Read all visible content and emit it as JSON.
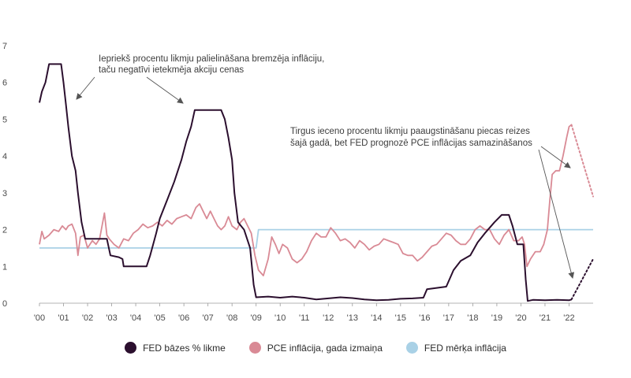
{
  "chart_data": {
    "type": "line",
    "ylim": [
      0,
      7
    ],
    "yticks": [
      0,
      1,
      2,
      3,
      4,
      5,
      6,
      7
    ],
    "xlim": [
      2000,
      2023
    ],
    "xticks": [
      {
        "year": 2000,
        "label": "'00"
      },
      {
        "year": 2001,
        "label": "'01"
      },
      {
        "year": 2002,
        "label": "'02"
      },
      {
        "year": 2003,
        "label": "'03"
      },
      {
        "year": 2004,
        "label": "'04"
      },
      {
        "year": 2005,
        "label": "'05"
      },
      {
        "year": 2006,
        "label": "'06"
      },
      {
        "year": 2007,
        "label": "'07"
      },
      {
        "year": 2008,
        "label": "'08"
      },
      {
        "year": 2009,
        "label": "'09"
      },
      {
        "year": 2010,
        "label": "'10"
      },
      {
        "year": 2011,
        "label": "'11"
      },
      {
        "year": 2012,
        "label": "'12"
      },
      {
        "year": 2013,
        "label": "'13"
      },
      {
        "year": 2014,
        "label": "'14"
      },
      {
        "year": 2015,
        "label": "'15"
      },
      {
        "year": 2016,
        "label": "'16"
      },
      {
        "year": 2017,
        "label": "'17"
      },
      {
        "year": 2018,
        "label": "'18"
      },
      {
        "year": 2019,
        "label": "'19"
      },
      {
        "year": 2020,
        "label": "'20"
      },
      {
        "year": 2021,
        "label": "'21"
      },
      {
        "year": 2022,
        "label": "'22"
      }
    ],
    "series": [
      {
        "name": "FED bāzes % likme",
        "color": "#2b0f2e",
        "points": [
          [
            2000.0,
            5.45
          ],
          [
            2000.1,
            5.75
          ],
          [
            2000.25,
            6.0
          ],
          [
            2000.4,
            6.5
          ],
          [
            2000.6,
            6.5
          ],
          [
            2000.9,
            6.5
          ],
          [
            2001.0,
            6.0
          ],
          [
            2001.1,
            5.4
          ],
          [
            2001.2,
            4.8
          ],
          [
            2001.35,
            4.0
          ],
          [
            2001.5,
            3.6
          ],
          [
            2001.6,
            3.0
          ],
          [
            2001.75,
            2.2
          ],
          [
            2001.9,
            1.75
          ],
          [
            2002.2,
            1.75
          ],
          [
            2002.5,
            1.75
          ],
          [
            2002.8,
            1.75
          ],
          [
            2002.95,
            1.3
          ],
          [
            2003.3,
            1.25
          ],
          [
            2003.45,
            1.2
          ],
          [
            2003.5,
            1.0
          ],
          [
            2003.8,
            1.0
          ],
          [
            2004.2,
            1.0
          ],
          [
            2004.45,
            1.0
          ],
          [
            2004.6,
            1.3
          ],
          [
            2004.85,
            1.9
          ],
          [
            2005.0,
            2.3
          ],
          [
            2005.3,
            2.8
          ],
          [
            2005.6,
            3.3
          ],
          [
            2005.9,
            3.9
          ],
          [
            2006.1,
            4.4
          ],
          [
            2006.3,
            4.8
          ],
          [
            2006.45,
            5.25
          ],
          [
            2006.8,
            5.25
          ],
          [
            2007.3,
            5.25
          ],
          [
            2007.55,
            5.25
          ],
          [
            2007.7,
            5.0
          ],
          [
            2007.85,
            4.5
          ],
          [
            2008.0,
            3.9
          ],
          [
            2008.1,
            3.0
          ],
          [
            2008.25,
            2.2
          ],
          [
            2008.5,
            2.0
          ],
          [
            2008.75,
            1.5
          ],
          [
            2008.9,
            0.5
          ],
          [
            2009.0,
            0.16
          ],
          [
            2009.5,
            0.18
          ],
          [
            2010.0,
            0.15
          ],
          [
            2010.5,
            0.18
          ],
          [
            2011.0,
            0.15
          ],
          [
            2011.5,
            0.1
          ],
          [
            2012.0,
            0.13
          ],
          [
            2012.5,
            0.16
          ],
          [
            2013.0,
            0.14
          ],
          [
            2013.5,
            0.1
          ],
          [
            2014.0,
            0.08
          ],
          [
            2014.5,
            0.09
          ],
          [
            2015.0,
            0.12
          ],
          [
            2015.5,
            0.13
          ],
          [
            2015.95,
            0.15
          ],
          [
            2016.1,
            0.38
          ],
          [
            2016.9,
            0.45
          ],
          [
            2017.2,
            0.9
          ],
          [
            2017.5,
            1.15
          ],
          [
            2017.9,
            1.3
          ],
          [
            2018.2,
            1.65
          ],
          [
            2018.5,
            1.9
          ],
          [
            2018.9,
            2.2
          ],
          [
            2019.2,
            2.4
          ],
          [
            2019.5,
            2.4
          ],
          [
            2019.65,
            2.1
          ],
          [
            2019.85,
            1.6
          ],
          [
            2020.1,
            1.6
          ],
          [
            2020.2,
            0.65
          ],
          [
            2020.28,
            0.06
          ],
          [
            2020.5,
            0.09
          ],
          [
            2021.0,
            0.08
          ],
          [
            2021.5,
            0.09
          ],
          [
            2022.0,
            0.08
          ],
          [
            2022.1,
            0.1
          ]
        ]
      },
      {
        "name": "PCE inflācija, gada izmaiņa",
        "color": "#d98a95",
        "points": [
          [
            2000.0,
            1.6
          ],
          [
            2000.1,
            1.95
          ],
          [
            2000.2,
            1.75
          ],
          [
            2000.4,
            1.85
          ],
          [
            2000.6,
            2.0
          ],
          [
            2000.8,
            1.95
          ],
          [
            2000.95,
            2.1
          ],
          [
            2001.1,
            2.0
          ],
          [
            2001.2,
            2.1
          ],
          [
            2001.35,
            2.15
          ],
          [
            2001.5,
            1.9
          ],
          [
            2001.6,
            1.3
          ],
          [
            2001.7,
            1.8
          ],
          [
            2001.85,
            1.85
          ],
          [
            2002.0,
            1.5
          ],
          [
            2002.2,
            1.7
          ],
          [
            2002.35,
            1.6
          ],
          [
            2002.5,
            1.75
          ],
          [
            2002.7,
            2.45
          ],
          [
            2002.8,
            1.85
          ],
          [
            2002.9,
            1.75
          ],
          [
            2003.1,
            1.6
          ],
          [
            2003.3,
            1.5
          ],
          [
            2003.5,
            1.75
          ],
          [
            2003.7,
            1.7
          ],
          [
            2003.9,
            1.9
          ],
          [
            2004.1,
            2.0
          ],
          [
            2004.3,
            2.15
          ],
          [
            2004.5,
            2.05
          ],
          [
            2004.7,
            2.1
          ],
          [
            2004.9,
            2.2
          ],
          [
            2005.1,
            2.1
          ],
          [
            2005.3,
            2.25
          ],
          [
            2005.5,
            2.15
          ],
          [
            2005.7,
            2.3
          ],
          [
            2005.9,
            2.35
          ],
          [
            2006.1,
            2.4
          ],
          [
            2006.3,
            2.3
          ],
          [
            2006.5,
            2.6
          ],
          [
            2006.65,
            2.7
          ],
          [
            2006.8,
            2.5
          ],
          [
            2006.95,
            2.3
          ],
          [
            2007.1,
            2.5
          ],
          [
            2007.25,
            2.3
          ],
          [
            2007.4,
            2.1
          ],
          [
            2007.55,
            2.0
          ],
          [
            2007.7,
            2.1
          ],
          [
            2007.85,
            2.35
          ],
          [
            2008.0,
            2.1
          ],
          [
            2008.2,
            2.0
          ],
          [
            2008.35,
            2.2
          ],
          [
            2008.5,
            2.3
          ],
          [
            2008.65,
            2.1
          ],
          [
            2008.8,
            1.9
          ],
          [
            2008.95,
            1.3
          ],
          [
            2009.1,
            0.9
          ],
          [
            2009.3,
            0.75
          ],
          [
            2009.5,
            1.2
          ],
          [
            2009.65,
            1.8
          ],
          [
            2009.8,
            1.6
          ],
          [
            2009.95,
            1.35
          ],
          [
            2010.1,
            1.6
          ],
          [
            2010.3,
            1.5
          ],
          [
            2010.5,
            1.2
          ],
          [
            2010.7,
            1.1
          ],
          [
            2010.9,
            1.2
          ],
          [
            2011.1,
            1.4
          ],
          [
            2011.3,
            1.7
          ],
          [
            2011.5,
            1.9
          ],
          [
            2011.7,
            1.8
          ],
          [
            2011.9,
            1.8
          ],
          [
            2012.1,
            2.05
          ],
          [
            2012.3,
            1.9
          ],
          [
            2012.5,
            1.7
          ],
          [
            2012.7,
            1.75
          ],
          [
            2012.9,
            1.65
          ],
          [
            2013.1,
            1.5
          ],
          [
            2013.3,
            1.7
          ],
          [
            2013.5,
            1.6
          ],
          [
            2013.7,
            1.45
          ],
          [
            2013.9,
            1.55
          ],
          [
            2014.1,
            1.6
          ],
          [
            2014.3,
            1.75
          ],
          [
            2014.5,
            1.7
          ],
          [
            2014.7,
            1.65
          ],
          [
            2014.9,
            1.6
          ],
          [
            2015.1,
            1.35
          ],
          [
            2015.3,
            1.3
          ],
          [
            2015.5,
            1.3
          ],
          [
            2015.7,
            1.15
          ],
          [
            2015.9,
            1.25
          ],
          [
            2016.1,
            1.4
          ],
          [
            2016.3,
            1.55
          ],
          [
            2016.5,
            1.6
          ],
          [
            2016.7,
            1.75
          ],
          [
            2016.9,
            1.9
          ],
          [
            2017.1,
            1.85
          ],
          [
            2017.3,
            1.7
          ],
          [
            2017.5,
            1.6
          ],
          [
            2017.7,
            1.6
          ],
          [
            2017.9,
            1.75
          ],
          [
            2018.1,
            2.0
          ],
          [
            2018.3,
            2.1
          ],
          [
            2018.5,
            2.0
          ],
          [
            2018.7,
            2.0
          ],
          [
            2018.9,
            1.75
          ],
          [
            2019.1,
            1.6
          ],
          [
            2019.3,
            1.85
          ],
          [
            2019.5,
            2.0
          ],
          [
            2019.7,
            1.7
          ],
          [
            2019.9,
            1.7
          ],
          [
            2020.05,
            1.8
          ],
          [
            2020.15,
            1.6
          ],
          [
            2020.25,
            1.0
          ],
          [
            2020.4,
            1.2
          ],
          [
            2020.6,
            1.4
          ],
          [
            2020.8,
            1.4
          ],
          [
            2020.95,
            1.6
          ],
          [
            2021.1,
            2.0
          ],
          [
            2021.2,
            2.8
          ],
          [
            2021.3,
            3.5
          ],
          [
            2021.45,
            3.6
          ],
          [
            2021.6,
            3.6
          ],
          [
            2021.75,
            4.0
          ],
          [
            2021.9,
            4.5
          ],
          [
            2022.0,
            4.8
          ],
          [
            2022.1,
            4.85
          ]
        ]
      },
      {
        "name": "FED mērķa inflācija",
        "color": "#a9d1e6",
        "points": [
          [
            2000.0,
            1.5
          ],
          [
            2009.0,
            1.5
          ],
          [
            2009.1,
            2.0
          ],
          [
            2023.0,
            2.0
          ]
        ]
      }
    ],
    "projections": [
      {
        "series": "FED bāzes % likme",
        "color": "#2b0f2e",
        "points": [
          [
            2022.1,
            0.1
          ],
          [
            2023.0,
            1.2
          ]
        ]
      },
      {
        "series": "PCE inflācija, gada izmaiņa",
        "color": "#d98a95",
        "points": [
          [
            2022.1,
            4.85
          ],
          [
            2023.0,
            2.9
          ]
        ]
      }
    ],
    "annotations": [
      {
        "id": "left",
        "lines": [
          "Iepriekš procentu likmju palielināšana bremzēja inflāciju,",
          "taču negatīvi ietekmēja akciju cenas"
        ]
      },
      {
        "id": "right",
        "lines": [
          "Tirgus ieceno procentu likmju paaugstināšanu piecas reizes",
          "šajā gadā, bet FED prognozē PCE inflācijas samazināšanos"
        ]
      }
    ],
    "legend_position": "bottom-center",
    "grid": false
  },
  "legend": [
    {
      "label": "FED bāzes % likme",
      "color": "#2b0f2e"
    },
    {
      "label": "PCE inflācija, gada izmaiņa",
      "color": "#d98a95"
    },
    {
      "label": "FED mērķa inflācija",
      "color": "#a9d1e6"
    }
  ]
}
